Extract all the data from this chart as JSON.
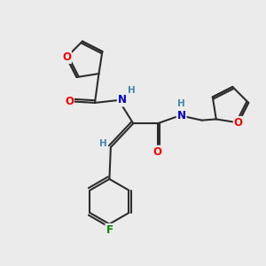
{
  "background_color": "#ebebeb",
  "bond_color": "#2d2d2d",
  "bond_width": 1.5,
  "atom_colors": {
    "O": "#ff0000",
    "N": "#0000cc",
    "F": "#008800",
    "H": "#4488aa",
    "C": "#2d2d2d"
  },
  "font_size_atom": 8.5,
  "font_size_h": 7.5
}
